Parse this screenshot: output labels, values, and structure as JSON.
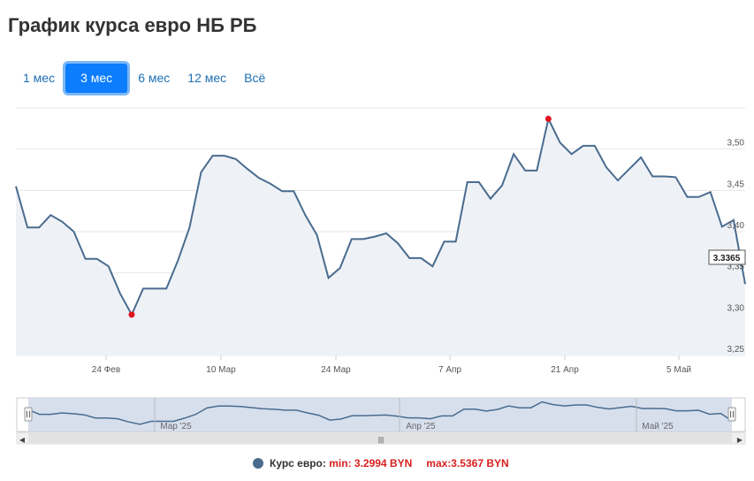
{
  "page": {
    "title": "График курса евро НБ РБ"
  },
  "range_buttons": [
    {
      "label": "1 мес",
      "active": false
    },
    {
      "label": "3 мес",
      "active": true
    },
    {
      "label": "6 мес",
      "active": false
    },
    {
      "label": "12 мес",
      "active": false
    },
    {
      "label": "Всё",
      "active": false
    }
  ],
  "colors": {
    "line": "#4a6c8e",
    "area": "#eef2f7",
    "marker": "#e0141e",
    "active_button": "#0b7dfd",
    "navigator_fill": "#d3dbeb"
  },
  "legend": {
    "series_label": "Курс евро:",
    "min_label": "min: 3.2994 BYN",
    "max_label": "max:3.5367 BYN"
  },
  "tooltip_value": "3.3365",
  "chart_data": {
    "type": "area",
    "x_labels": [
      "24 Фев",
      "10 Мар",
      "24 Мар",
      "7 Апр",
      "21 Апр",
      "5 Май"
    ],
    "navigator_labels": [
      "Мар '25",
      "Апр '25",
      "Май '25"
    ],
    "y_ticks": [
      "3,25",
      "3,30",
      "3,35",
      "3,40",
      "3,45",
      "3,50"
    ],
    "ylim": [
      3.25,
      3.55
    ],
    "grid": true,
    "x": [
      "13 Фев",
      "14 Фев",
      "15 Фев",
      "18 Фев",
      "19 Фев",
      "20 Фев",
      "21 Фев",
      "22 Фев",
      "25 Фев",
      "26 Фев",
      "27 Фев",
      "28 Фев",
      "1 Мар",
      "4 Мар",
      "5 Мар",
      "6 Мар",
      "7 Мар",
      "8 Мар",
      "11 Мар",
      "12 Мар",
      "13 Мар",
      "14 Мар",
      "15 Мар",
      "18 Мар",
      "19 Мар",
      "20 Мар",
      "21 Мар",
      "22 Мар",
      "25 Мар",
      "26 Мар",
      "27 Мар",
      "28 Мар",
      "29 Мар",
      "1 Апр",
      "2 Апр",
      "3 Апр",
      "4 Апр",
      "5 Апр",
      "8 Апр",
      "9 Апр",
      "10 Апр",
      "11 Апр",
      "12 Апр",
      "15 Апр",
      "16 Апр",
      "17 Апр",
      "18 Апр",
      "19 Апр",
      "22 Апр",
      "23 Апр",
      "24 Апр",
      "25 Апр",
      "26 Апр",
      "29 Апр",
      "30 Апр",
      "2 Май",
      "3 Май",
      "6 Май",
      "7 Май",
      "8 Май",
      "10 Май",
      "13 Май",
      "14 Май",
      "15 Май"
    ],
    "values": [
      3.455,
      3.405,
      3.405,
      3.42,
      3.412,
      3.4,
      3.367,
      3.367,
      3.358,
      3.325,
      3.2994,
      3.331,
      3.331,
      3.331,
      3.365,
      3.405,
      3.472,
      3.492,
      3.492,
      3.488,
      3.476,
      3.465,
      3.458,
      3.449,
      3.449,
      3.42,
      3.396,
      3.344,
      3.356,
      3.391,
      3.391,
      3.394,
      3.398,
      3.386,
      3.368,
      3.368,
      3.358,
      3.388,
      3.388,
      3.46,
      3.46,
      3.44,
      3.456,
      3.494,
      3.474,
      3.474,
      3.5367,
      3.508,
      3.494,
      3.504,
      3.504,
      3.478,
      3.462,
      3.476,
      3.49,
      3.467,
      3.467,
      3.466,
      3.442,
      3.442,
      3.448,
      3.406,
      3.414,
      3.3365
    ],
    "min": {
      "x": "27 Фев",
      "value": 3.2994
    },
    "max": {
      "x": "18 Апр",
      "value": 3.5367
    }
  }
}
